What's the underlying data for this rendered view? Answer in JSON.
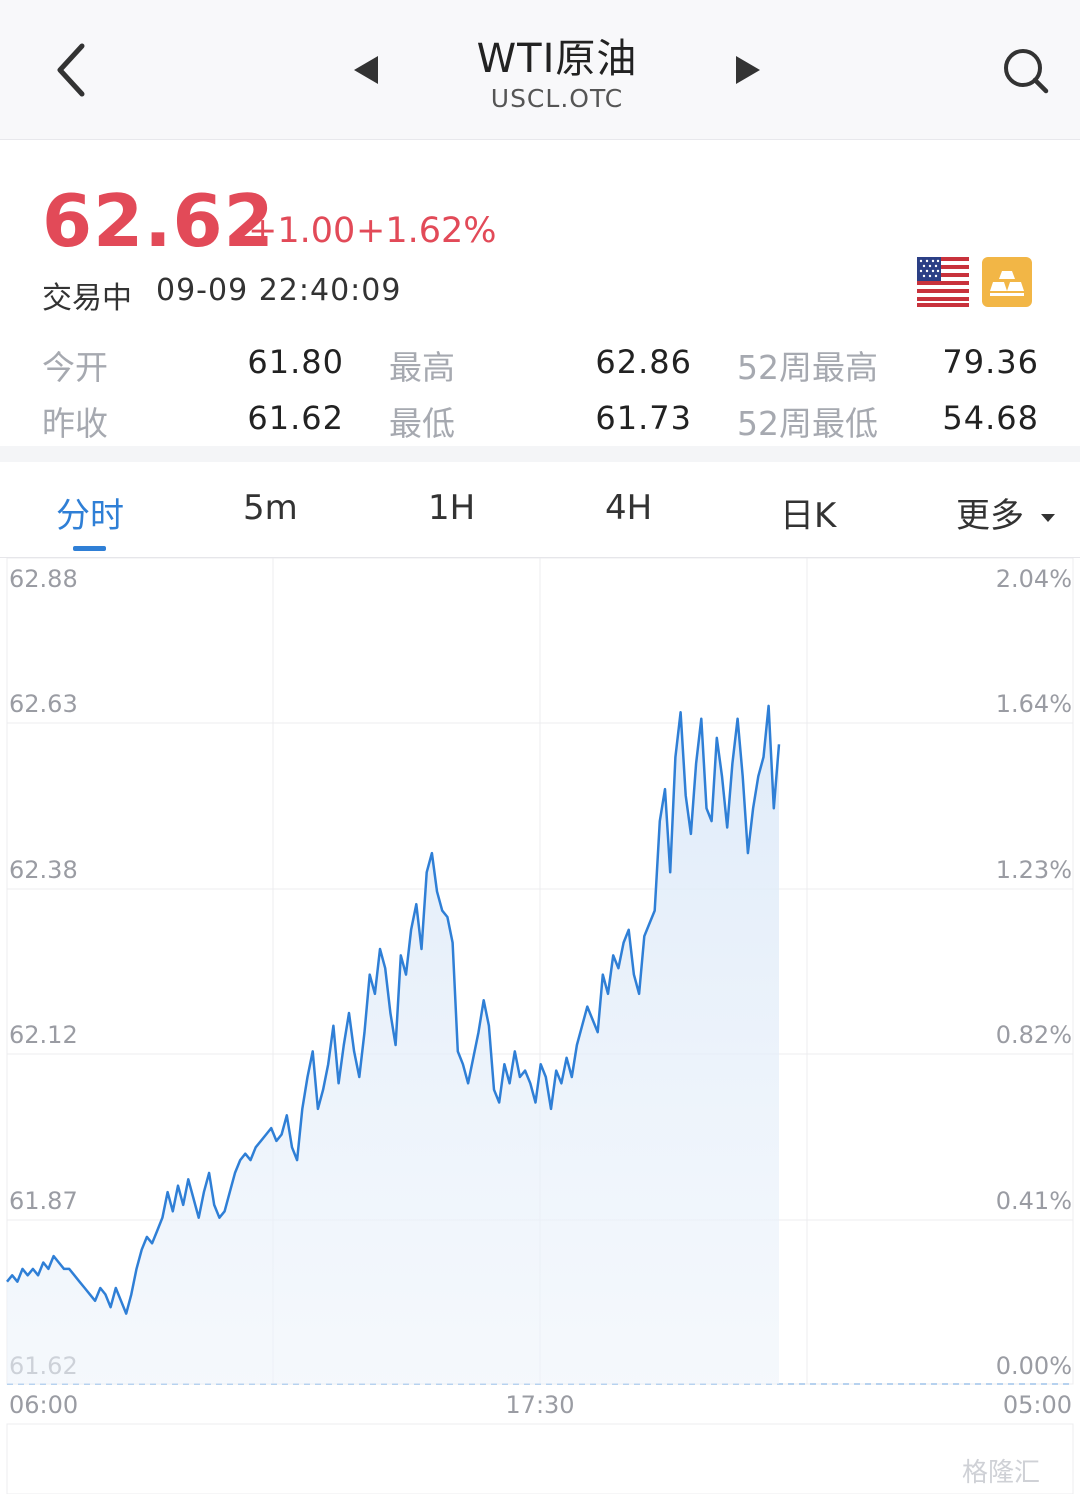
{
  "header": {
    "title": "WTI原油",
    "subtitle": "USCL.OTC"
  },
  "quote": {
    "price": "62.62",
    "change": "+1.00",
    "change_pct": "+1.62%",
    "status": "交易中",
    "time": "09-09 22:40:09",
    "colors": {
      "up": "#e24a58",
      "accent": "#2f7fd6"
    }
  },
  "stats": {
    "open_label": "今开",
    "open": "61.80",
    "high_label": "最高",
    "high": "62.86",
    "w52high_label": "52周最高",
    "w52high": "79.36",
    "prev_label": "昨收",
    "prev": "61.62",
    "low_label": "最低",
    "low": "61.73",
    "w52low_label": "52周最低",
    "w52low": "54.68"
  },
  "tabs": [
    "分时",
    "5m",
    "1H",
    "4H",
    "日K",
    "更多"
  ],
  "active_tab": "分时",
  "watermark": "格隆汇",
  "chart_data": {
    "type": "line",
    "title": "",
    "xlabel": "",
    "ylabel": "",
    "x_ticks": [
      "06:00",
      "17:30",
      "05:00"
    ],
    "y_ticks_left": [
      "62.88",
      "62.63",
      "62.38",
      "62.12",
      "61.87",
      "61.62"
    ],
    "y_ticks_right": [
      "2.04%",
      "1.64%",
      "1.23%",
      "0.82%",
      "0.41%",
      "0.00%"
    ],
    "ylim": [
      61.62,
      62.88
    ],
    "baseline": 61.62,
    "grid": true,
    "series": [
      {
        "values": [
          61.78,
          61.79,
          61.78,
          61.8,
          61.79,
          61.8,
          61.79,
          61.81,
          61.8,
          61.82,
          61.81,
          61.8,
          61.8,
          61.79,
          61.78,
          61.77,
          61.76,
          61.75,
          61.77,
          61.76,
          61.74,
          61.77,
          61.75,
          61.73,
          61.76,
          61.8,
          61.83,
          61.85,
          61.84,
          61.86,
          61.88,
          61.92,
          61.89,
          61.93,
          61.9,
          61.94,
          61.91,
          61.88,
          61.92,
          61.95,
          61.9,
          61.88,
          61.89,
          61.92,
          61.95,
          61.97,
          61.98,
          61.97,
          61.99,
          62.0,
          62.01,
          62.02,
          62.0,
          62.01,
          62.04,
          61.99,
          61.97,
          62.05,
          62.1,
          62.14,
          62.05,
          62.08,
          62.12,
          62.18,
          62.09,
          62.15,
          62.2,
          62.14,
          62.1,
          62.17,
          62.26,
          62.23,
          62.3,
          62.27,
          62.2,
          62.15,
          62.29,
          62.26,
          62.33,
          62.37,
          62.3,
          62.42,
          62.45,
          62.39,
          62.36,
          62.35,
          62.31,
          62.14,
          62.12,
          62.09,
          62.13,
          62.17,
          62.22,
          62.18,
          62.08,
          62.06,
          62.12,
          62.09,
          62.14,
          62.1,
          62.11,
          62.09,
          62.06,
          62.12,
          62.1,
          62.05,
          62.11,
          62.09,
          62.13,
          62.1,
          62.15,
          62.18,
          62.21,
          62.19,
          62.17,
          62.26,
          62.23,
          62.29,
          62.27,
          62.31,
          62.33,
          62.26,
          62.23,
          62.32,
          62.34,
          62.36,
          62.5,
          62.55,
          62.42,
          62.6,
          62.67,
          62.54,
          62.48,
          62.59,
          62.66,
          62.52,
          62.5,
          62.63,
          62.57,
          62.49,
          62.59,
          62.66,
          62.57,
          62.45,
          62.52,
          62.57,
          62.6,
          62.68,
          62.52,
          62.62
        ]
      }
    ]
  }
}
